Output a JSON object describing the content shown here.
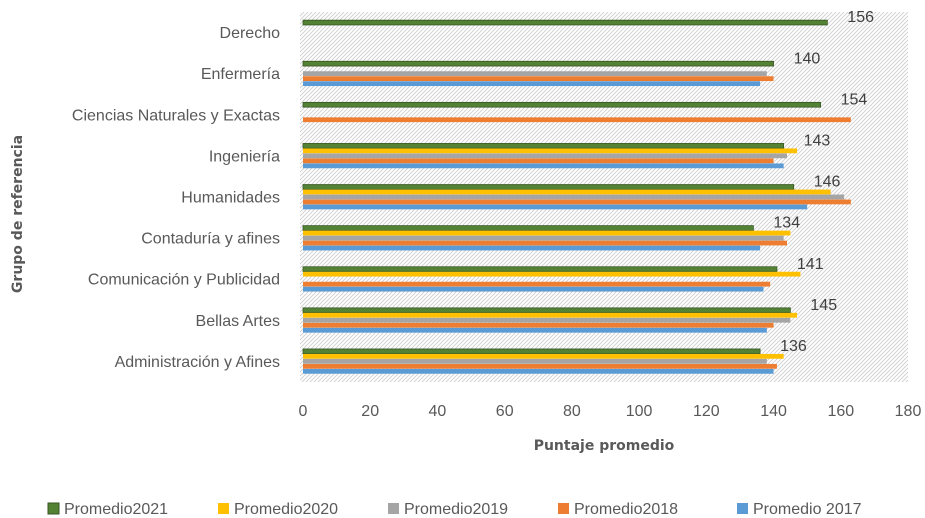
{
  "chart_data": {
    "type": "bar",
    "orientation": "horizontal",
    "xlabel": "Puntaje promedio",
    "ylabel": "Grupo de referencia",
    "xlim": [
      0,
      180
    ],
    "xticks": [
      "0",
      "20",
      "40",
      "60",
      "80",
      "100",
      "120",
      "140",
      "160",
      "180"
    ],
    "grid": false,
    "plot_background": "diagonal-hatch",
    "legend_position": "bottom",
    "categories": [
      "Administración y Afines",
      "Bellas Artes",
      "Comunicación y Publicidad",
      "Contaduría y afines",
      "Humanidades",
      "Ingeniería",
      "Ciencias Naturales y Exactas",
      "Enfermería",
      "Derecho"
    ],
    "series": [
      {
        "name": "Promedio2021",
        "color": "#548235",
        "border": "#375623",
        "values": [
          136,
          145,
          141,
          134,
          146,
          143,
          154,
          140,
          156
        ]
      },
      {
        "name": "Promedio2020",
        "color": "#FFC000",
        "values": [
          143,
          147,
          148,
          145,
          157,
          147,
          null,
          null,
          null
        ]
      },
      {
        "name": "Promedio2019",
        "color": "#A5A5A5",
        "values": [
          138,
          145,
          null,
          143,
          161,
          144,
          null,
          138,
          null
        ]
      },
      {
        "name": "Promedio2018",
        "color": "#ED7D31",
        "values": [
          141,
          140,
          139,
          144,
          163,
          140,
          163,
          140,
          null
        ]
      },
      {
        "name": "Promedio 2017",
        "color": "#5B9BD5",
        "values": [
          140,
          138,
          137,
          136,
          150,
          143,
          null,
          136,
          null
        ]
      }
    ],
    "data_labels": {
      "series": "Promedio2021",
      "values": [
        "136",
        "145",
        "141",
        "134",
        "146",
        "143",
        "154",
        "140",
        "156"
      ]
    }
  }
}
